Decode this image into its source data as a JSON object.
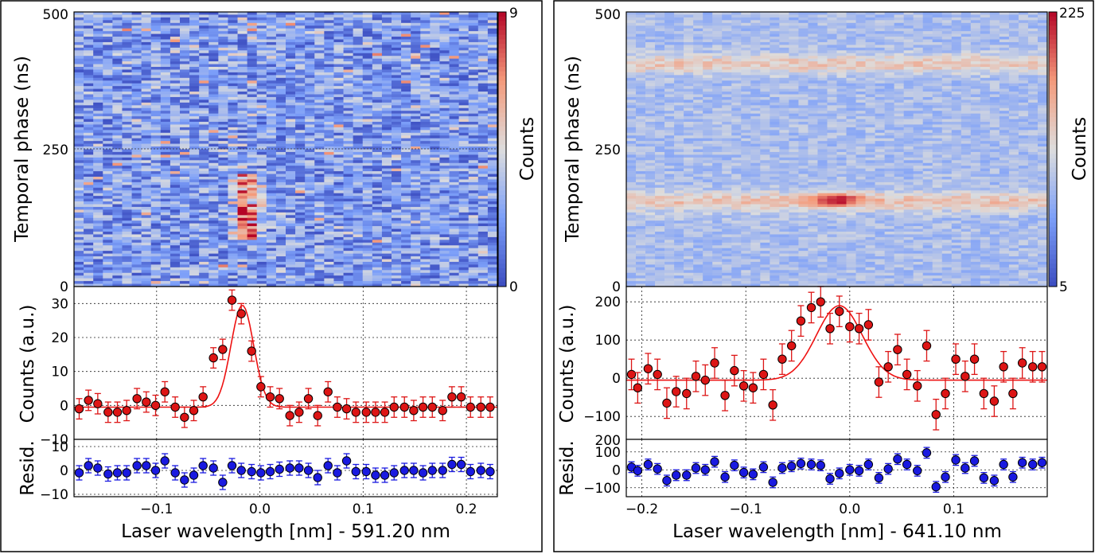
{
  "chart_data": [
    {
      "type": "heatmap",
      "panel": "left",
      "ylabel": "Temporal phase (ns)",
      "ylim": [
        0,
        500
      ],
      "y_ticks": [
        "0",
        "250",
        "500"
      ],
      "colorbar": {
        "label": "Counts",
        "min": 0,
        "max": 9,
        "ticks": [
          "0",
          "9"
        ],
        "colormap": "coolwarm"
      },
      "features": [
        {
          "description": "excess counts near x=-0.02 to 0.0, y=90 to 200",
          "x_center": -0.01,
          "y_range": [
            90,
            200
          ],
          "peak_counts": 9
        }
      ]
    },
    {
      "type": "scatter",
      "panel": "left",
      "ylabel": "Counts (a.u.)",
      "ylim": [
        -10,
        35
      ],
      "y_ticks": [
        "−10",
        "0",
        "10",
        "20",
        "30"
      ],
      "grid": true,
      "fit": {
        "type": "gaussian",
        "amplitude": 30,
        "center": -0.017,
        "sigma": 0.011,
        "offset": -0.5,
        "color": "#ee1111"
      },
      "marker_color": "#dd1515",
      "x": [
        -0.175,
        -0.166,
        -0.157,
        -0.147,
        -0.138,
        -0.129,
        -0.119,
        -0.11,
        -0.101,
        -0.092,
        -0.082,
        -0.073,
        -0.064,
        -0.055,
        -0.045,
        -0.036,
        -0.027,
        -0.018,
        -0.008,
        0.001,
        0.01,
        0.019,
        0.029,
        0.038,
        0.047,
        0.056,
        0.066,
        0.075,
        0.084,
        0.093,
        0.103,
        0.112,
        0.121,
        0.13,
        0.14,
        0.149,
        0.158,
        0.167,
        0.177,
        0.186,
        0.195,
        0.204,
        0.214,
        0.223
      ],
      "y": [
        -1,
        1.5,
        0.5,
        -2,
        -2,
        -1.5,
        2,
        1,
        0,
        4,
        -0.5,
        -3.5,
        -1.5,
        2.5,
        14,
        16.5,
        31,
        27,
        16,
        5.5,
        2.5,
        2,
        -3,
        -2,
        2,
        -3,
        4,
        -0.5,
        -1,
        -2,
        -2,
        -2,
        -2,
        -0.5,
        -0.5,
        -1.5,
        -0.5,
        -0.5,
        -1.5,
        2.5,
        2.5,
        -0.5,
        -0.5,
        -0.5
      ],
      "y_err": 3
    },
    {
      "type": "scatter",
      "panel": "left",
      "ylabel": "Resid.",
      "xlabel": "Laser wavelength [nm] - 591.20 nm",
      "xlim": [
        -0.18,
        0.23
      ],
      "x_ticks": [
        "−0.1",
        "0.0",
        "0.1",
        "0.2"
      ],
      "ylim": [
        -11,
        13
      ],
      "y_ticks": [
        "−10",
        "0",
        "10"
      ],
      "grid": true,
      "marker_color": "#1a1ae0",
      "x": [
        -0.175,
        -0.166,
        -0.157,
        -0.147,
        -0.138,
        -0.129,
        -0.119,
        -0.11,
        -0.101,
        -0.092,
        -0.082,
        -0.073,
        -0.064,
        -0.055,
        -0.045,
        -0.036,
        -0.027,
        -0.018,
        -0.008,
        0.001,
        0.01,
        0.019,
        0.029,
        0.038,
        0.047,
        0.056,
        0.066,
        0.075,
        0.084,
        0.093,
        0.103,
        0.112,
        0.121,
        0.13,
        0.14,
        0.149,
        0.158,
        0.167,
        0.177,
        0.186,
        0.195,
        0.204,
        0.214,
        0.223
      ],
      "y": [
        -1,
        2,
        1,
        -1.5,
        -1,
        -1,
        2,
        2,
        0,
        4,
        -1,
        -4,
        -2,
        2,
        1,
        -5,
        2,
        0,
        -0.5,
        -1,
        -0.5,
        0.5,
        1,
        1,
        0,
        -3,
        2,
        -1,
        4,
        -0.5,
        -0.5,
        -2,
        -2,
        -1,
        0,
        0,
        -1,
        0,
        0,
        2.5,
        2.5,
        -0.5,
        0,
        -0.5
      ],
      "y_err": 3
    },
    {
      "type": "heatmap",
      "panel": "right",
      "ylabel": "Temporal phase (ns)",
      "ylim": [
        0,
        500
      ],
      "y_ticks": [
        "0",
        "250",
        "500"
      ],
      "colorbar": {
        "label": "Counts",
        "min": 5,
        "max": 225,
        "ticks": [
          "5",
          "225"
        ],
        "colormap": "coolwarm"
      },
      "features": [
        {
          "description": "band near y=400",
          "y_center": 405,
          "counts": 120
        },
        {
          "description": "band near y=150",
          "y_center": 155,
          "counts": 130
        },
        {
          "description": "hotspot",
          "x_center": -0.015,
          "y_center": 160,
          "peak_counts": 225
        }
      ]
    },
    {
      "type": "scatter",
      "panel": "right",
      "ylabel": "Counts (a.u.)",
      "ylim": [
        -160,
        240
      ],
      "y_ticks": [
        "−100",
        "0",
        "100",
        "200"
      ],
      "grid": true,
      "fit": {
        "type": "gaussian",
        "amplitude": 195,
        "center": -0.01,
        "sigma": 0.022,
        "offset": -5,
        "color": "#ee1111"
      },
      "marker_color": "#dd1515",
      "x": [
        -0.21,
        -0.204,
        -0.194,
        -0.185,
        -0.176,
        -0.167,
        -0.157,
        -0.148,
        -0.139,
        -0.13,
        -0.12,
        -0.111,
        -0.102,
        -0.093,
        -0.083,
        -0.074,
        -0.065,
        -0.056,
        -0.047,
        -0.037,
        -0.028,
        -0.019,
        -0.01,
        0.0,
        0.009,
        0.018,
        0.028,
        0.037,
        0.046,
        0.055,
        0.065,
        0.074,
        0.083,
        0.092,
        0.102,
        0.111,
        0.12,
        0.129,
        0.139,
        0.148,
        0.157,
        0.166,
        0.176,
        0.185
      ],
      "y": [
        10,
        -25,
        25,
        10,
        -65,
        -35,
        -40,
        5,
        -5,
        40,
        -45,
        20,
        -20,
        -25,
        10,
        -70,
        50,
        85,
        150,
        185,
        200,
        130,
        175,
        135,
        130,
        140,
        -10,
        30,
        75,
        10,
        -20,
        85,
        -95,
        -40,
        50,
        5,
        50,
        -40,
        -60,
        30,
        -40,
        40,
        30,
        30
      ],
      "y_err": 40
    },
    {
      "type": "scatter",
      "panel": "right",
      "ylabel": "Resid.",
      "xlabel": "Laser wavelength [nm] - 641.10 nm",
      "xlim": [
        -0.215,
        0.19
      ],
      "x_ticks": [
        "−0.2",
        "−0.1",
        "0.0",
        "0.1"
      ],
      "ylim": [
        -150,
        200
      ],
      "y_ticks": [
        "−100",
        "0",
        "100",
        "200"
      ],
      "grid": true,
      "marker_color": "#1a1ae0",
      "x": [
        -0.21,
        -0.204,
        -0.194,
        -0.185,
        -0.176,
        -0.167,
        -0.157,
        -0.148,
        -0.139,
        -0.13,
        -0.12,
        -0.111,
        -0.102,
        -0.093,
        -0.083,
        -0.074,
        -0.065,
        -0.056,
        -0.047,
        -0.037,
        -0.028,
        -0.019,
        -0.01,
        0.0,
        0.009,
        0.018,
        0.028,
        0.037,
        0.046,
        0.055,
        0.065,
        0.074,
        0.083,
        0.092,
        0.102,
        0.111,
        0.12,
        0.129,
        0.139,
        0.148,
        0.157,
        0.166,
        0.176,
        0.185
      ],
      "y": [
        15,
        -5,
        30,
        5,
        -60,
        -30,
        -30,
        10,
        0,
        45,
        -40,
        25,
        -15,
        -25,
        15,
        -70,
        10,
        20,
        35,
        30,
        25,
        -50,
        -20,
        0,
        -5,
        30,
        -45,
        5,
        60,
        30,
        -5,
        95,
        -95,
        -40,
        55,
        10,
        50,
        -45,
        -60,
        30,
        -40,
        40,
        30,
        40
      ],
      "y_err": 30
    }
  ]
}
